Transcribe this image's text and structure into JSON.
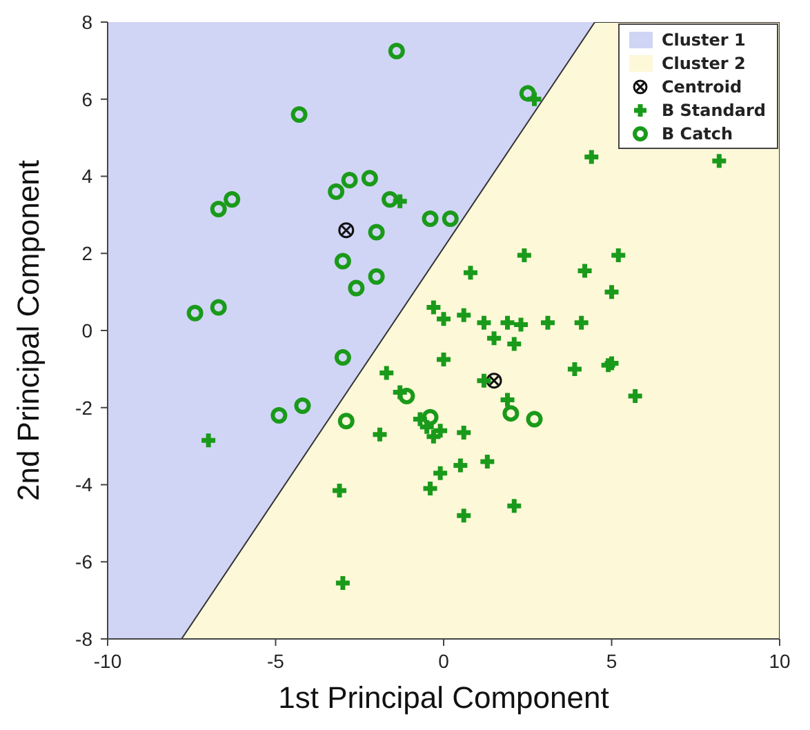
{
  "chart_data": {
    "type": "scatter",
    "xlabel": "1st Principal Component",
    "ylabel": "2nd Principal Component",
    "xlim": [
      -10,
      10
    ],
    "ylim": [
      -8,
      8
    ],
    "xticks": [
      -10,
      -5,
      0,
      5,
      10
    ],
    "yticks": [
      -8,
      -6,
      -4,
      -2,
      0,
      2,
      4,
      6,
      8
    ],
    "grid": false,
    "legend": "top right",
    "series": [
      {
        "name": "Cluster 1",
        "type": "area",
        "color": "#d0d5f5",
        "x": [
          -10,
          -10,
          4.5,
          -7.8
        ],
        "values": [
          -8,
          8,
          8,
          -8
        ]
      },
      {
        "name": "Cluster 2",
        "type": "area",
        "color": "#fdf8d8",
        "x": [
          -7.8,
          4.5,
          10,
          10
        ],
        "values": [
          -8,
          8,
          8,
          -8
        ]
      },
      {
        "name": "Centroid",
        "type": "scatter",
        "marker": "circle-x",
        "color": "#111111",
        "x": [
          -2.9,
          1.5
        ],
        "values": [
          2.6,
          -1.3
        ]
      },
      {
        "name": "B Standard",
        "type": "scatter",
        "marker": "cross",
        "color": "#1a9a1a",
        "x": [
          2.7,
          -1.3,
          4.4,
          8.2,
          0.8,
          2.4,
          4.2,
          5.2,
          5.0,
          -0.3,
          0.0,
          0.6,
          1.2,
          1.9,
          2.3,
          3.1,
          4.1,
          1.5,
          2.1,
          0.0,
          3.9,
          4.9,
          5.0,
          1.2,
          1.9,
          5.7,
          -1.7,
          -1.3,
          -0.7,
          -0.5,
          -0.3,
          -0.1,
          0.6,
          -1.9,
          -7.0,
          0.5,
          1.3,
          -0.1,
          -0.4,
          -3.1,
          2.1,
          0.6,
          -3.0
        ],
        "values": [
          6.0,
          3.35,
          4.5,
          4.4,
          1.5,
          1.95,
          1.55,
          1.95,
          1.0,
          0.6,
          0.3,
          0.4,
          0.2,
          0.2,
          0.15,
          0.2,
          0.2,
          -0.2,
          -0.35,
          -0.75,
          -1.0,
          -0.9,
          -0.85,
          -1.3,
          -1.8,
          -1.7,
          -1.1,
          -1.6,
          -2.3,
          -2.5,
          -2.75,
          -2.6,
          -2.65,
          -2.7,
          -2.85,
          -3.5,
          -3.4,
          -3.7,
          -4.1,
          -4.15,
          -4.55,
          -4.8,
          -6.55
        ]
      },
      {
        "name": "B Catch",
        "type": "scatter",
        "marker": "circle",
        "color": "#1a9a1a",
        "x": [
          -1.4,
          -4.3,
          2.5,
          -6.7,
          -6.3,
          -3.2,
          -2.8,
          -2.2,
          -1.6,
          -0.4,
          0.2,
          -2.0,
          -3.0,
          -2.6,
          -2.0,
          -7.4,
          -6.7,
          -3.0,
          -4.2,
          -4.9,
          -2.9,
          -1.1,
          -0.4,
          2.0,
          2.7
        ],
        "values": [
          7.25,
          5.6,
          6.15,
          3.15,
          3.4,
          3.6,
          3.9,
          3.95,
          3.4,
          2.9,
          2.9,
          2.55,
          1.8,
          1.1,
          1.4,
          0.45,
          0.6,
          -0.7,
          -1.95,
          -2.2,
          -2.35,
          -1.7,
          -2.25,
          -2.15,
          -2.3
        ]
      }
    ]
  }
}
